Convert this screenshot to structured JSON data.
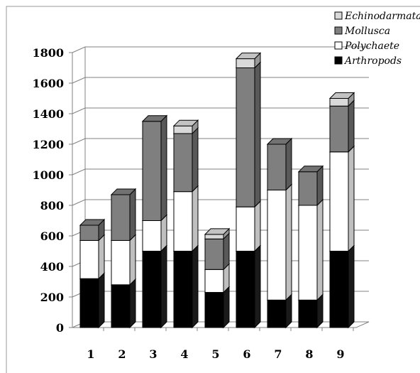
{
  "chart_data": {
    "type": "bar",
    "stacked": true,
    "three_d": true,
    "categories": [
      "1",
      "2",
      "3",
      "4",
      "5",
      "6",
      "7",
      "8",
      "9"
    ],
    "series": [
      {
        "name": "Arthropods",
        "color": "#000000",
        "values": [
          320,
          280,
          500,
          500,
          230,
          500,
          180,
          180,
          500
        ]
      },
      {
        "name": "Polychaete",
        "color": "#ffffff",
        "values": [
          250,
          290,
          200,
          390,
          150,
          290,
          720,
          620,
          650
        ]
      },
      {
        "name": "Mollusca",
        "color": "#7f7f7f",
        "values": [
          100,
          300,
          650,
          380,
          200,
          910,
          300,
          220,
          300
        ]
      },
      {
        "name": "Echinodarmata",
        "color": "#d9d9d9",
        "values": [
          0,
          0,
          0,
          50,
          30,
          60,
          0,
          0,
          50
        ]
      }
    ],
    "legend_order": [
      "Echinodarmata",
      "Mollusca",
      "Polychaete",
      "Arthropods"
    ],
    "legend_position": "top-right",
    "yticks": [
      "0",
      "200",
      "400",
      "600",
      "800",
      "1000",
      "1200",
      "1400",
      "1600",
      "1800"
    ],
    "ylim": [
      0,
      1800
    ],
    "grid": true,
    "title": "",
    "xlabel": "",
    "ylabel": ""
  }
}
